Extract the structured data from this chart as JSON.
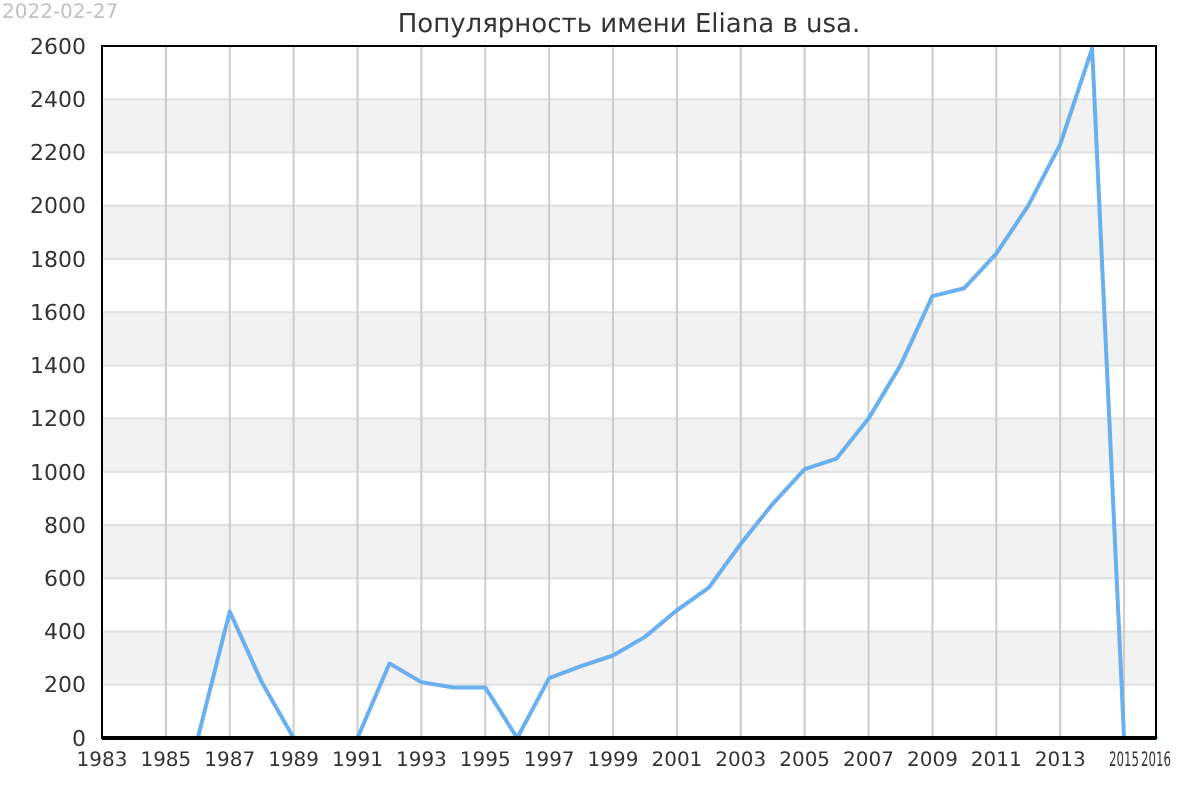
{
  "chart_data": {
    "type": "line",
    "title": "Популярность имени Eliana в usa.",
    "annotations": [
      "2022-02-27"
    ],
    "x": [
      1984,
      1985,
      1986,
      1987,
      1988,
      1989,
      1990,
      1991,
      1992,
      1993,
      1994,
      1995,
      1996,
      1997,
      1998,
      1999,
      2000,
      2001,
      2002,
      2003,
      2004,
      2005,
      2006,
      2007,
      2008,
      2009,
      2010,
      2011,
      2012,
      2013,
      2014,
      2015,
      2016
    ],
    "series": [
      {
        "color": "#6aaff0",
        "values": [
          0,
          0,
          0,
          475,
          210,
          0,
          0,
          0,
          280,
          210,
          190,
          190,
          0,
          225,
          270,
          310,
          380,
          480,
          565,
          730,
          880,
          1010,
          1050,
          1200,
          1400,
          1660,
          1690,
          1820,
          2000,
          2230,
          2590,
          0,
          0
        ]
      }
    ],
    "xlim": [
      1983,
      2016
    ],
    "xticks": [
      1983,
      1985,
      1987,
      1989,
      1991,
      1993,
      1995,
      1997,
      1999,
      2001,
      2003,
      2005,
      2007,
      2009,
      2011,
      2013,
      2015,
      2016
    ],
    "ylim": [
      0,
      2600
    ],
    "yticks": [
      0,
      200,
      400,
      600,
      800,
      1000,
      1200,
      1400,
      1600,
      1800,
      2000,
      2200,
      2400,
      2600
    ],
    "grid": true,
    "marker": "none",
    "line_style": "solid"
  }
}
